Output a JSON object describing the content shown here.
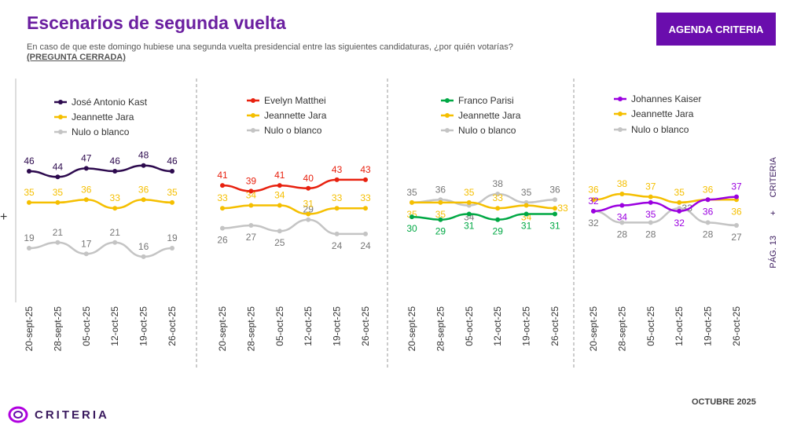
{
  "header": {
    "title": "Escenarios de segunda vuelta",
    "subtitle": "En caso de que este domingo hubiese una segunda vuelta presidencial entre las siguientes candidaturas, ¿por quién votarías?",
    "subtitle_note": "(PREGUNTA CERRADA)",
    "button": "AGENDA CRITERIA"
  },
  "side": {
    "brand": "CRITERIA",
    "plus": "+",
    "page": "PÁG. 13"
  },
  "footer": {
    "logo": "CRITERIA",
    "date": "OCTUBRE 2025"
  },
  "colors": {
    "kast": "#2d0a4e",
    "jara": "#f5bf00",
    "nulo": "#c4c4c4",
    "matthei": "#e8210f",
    "parisi": "#00a844",
    "kaiser": "#9b00e0",
    "accent": "#6a0dad"
  },
  "chart_data": [
    {
      "type": "line",
      "categories": [
        "20-sept-25",
        "28-sept-25",
        "05-oct-25",
        "12-oct-25",
        "19-oct-25",
        "26-oct-25"
      ],
      "series": [
        {
          "name": "José Antonio Kast",
          "color": "#2d0a4e",
          "values": [
            46,
            44,
            47,
            46,
            48,
            46
          ]
        },
        {
          "name": "Jeannette Jara",
          "color": "#f5bf00",
          "values": [
            35,
            35,
            36,
            33,
            36,
            35
          ]
        },
        {
          "name": "Nulo o blanco",
          "color": "#c4c4c4",
          "values": [
            19,
            21,
            17,
            21,
            16,
            19
          ]
        }
      ]
    },
    {
      "type": "line",
      "categories": [
        "20-sept-25",
        "28-sept-25",
        "05-oct-25",
        "12-oct-25",
        "19-oct-25",
        "26-oct-25"
      ],
      "series": [
        {
          "name": "Evelyn Matthei",
          "color": "#e8210f",
          "values": [
            41,
            39,
            41,
            40,
            43,
            43
          ]
        },
        {
          "name": "Jeannette Jara",
          "color": "#f5bf00",
          "values": [
            33,
            34,
            34,
            31,
            33,
            33
          ]
        },
        {
          "name": "Nulo o blanco",
          "color": "#c4c4c4",
          "values": [
            26,
            27,
            25,
            29,
            24,
            24
          ]
        }
      ]
    },
    {
      "type": "line",
      "categories": [
        "20-sept-25",
        "28-sept-25",
        "05-oct-25",
        "12-oct-25",
        "19-oct-25",
        "26-oct-25"
      ],
      "series": [
        {
          "name": "Franco Parisi",
          "color": "#00a844",
          "values": [
            30,
            29,
            31,
            29,
            31,
            31
          ]
        },
        {
          "name": "Jeannette Jara",
          "color": "#f5bf00",
          "values": [
            35,
            35,
            35,
            33,
            34,
            33
          ]
        },
        {
          "name": "Nulo o blanco",
          "color": "#c4c4c4",
          "values": [
            35,
            36,
            34,
            38,
            35,
            36
          ]
        }
      ]
    },
    {
      "type": "line",
      "categories": [
        "20-sept-25",
        "28-sept-25",
        "05-oct-25",
        "12-oct-25",
        "19-oct-25",
        "26-oct-25"
      ],
      "series": [
        {
          "name": "Johannes Kaiser",
          "color": "#9b00e0",
          "values": [
            32,
            34,
            35,
            32,
            36,
            37
          ]
        },
        {
          "name": "Jeannette Jara",
          "color": "#f5bf00",
          "values": [
            36,
            38,
            37,
            35,
            36,
            36
          ]
        },
        {
          "name": "Nulo o blanco",
          "color": "#c4c4c4",
          "values": [
            32,
            28,
            28,
            33,
            28,
            27
          ]
        }
      ]
    }
  ]
}
